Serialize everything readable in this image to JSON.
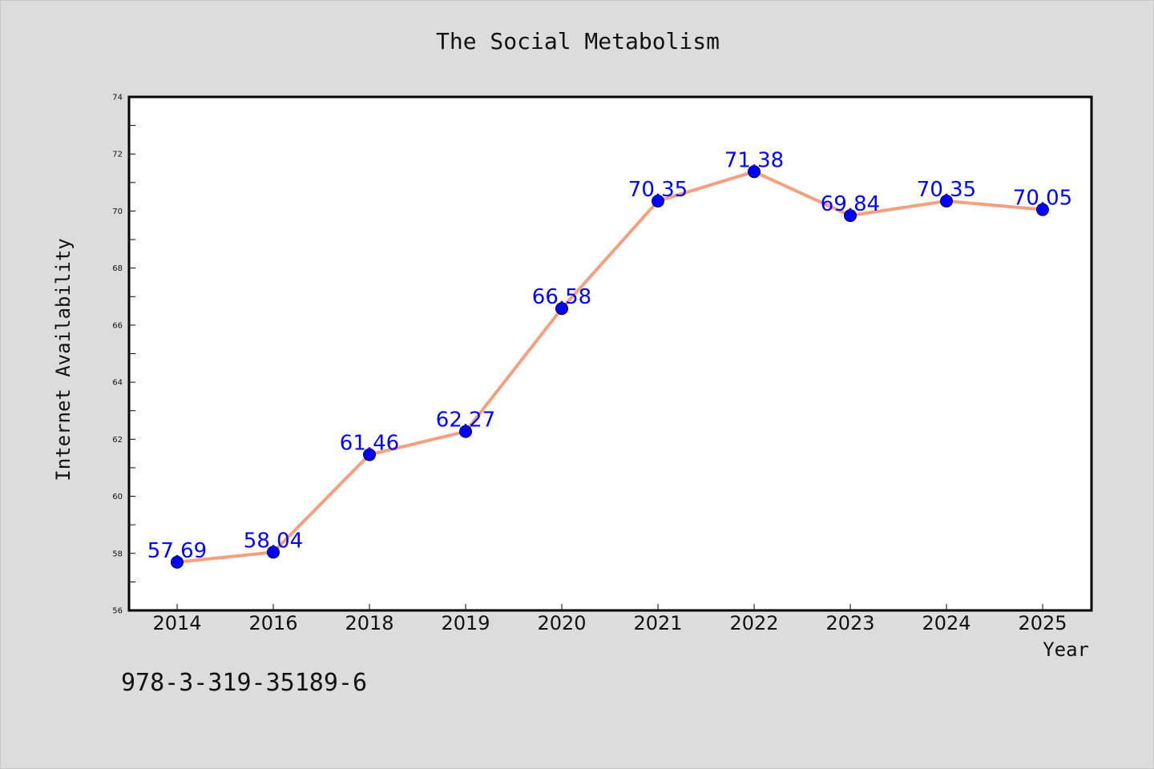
{
  "chart_data": {
    "type": "line",
    "title": "The Social Metabolism",
    "xlabel": "Year",
    "ylabel": "Internet Availability",
    "categories": [
      "2014",
      "2016",
      "2018",
      "2019",
      "2020",
      "2021",
      "2022",
      "2023",
      "2024",
      "2025"
    ],
    "series": [
      {
        "values": [
          57.69,
          58.04,
          61.46,
          62.27,
          66.58,
          70.35,
          71.38,
          69.84,
          70.35,
          70.05
        ],
        "labels": [
          "57.69",
          "58.04",
          "61.46",
          "62.27",
          "66.58",
          "70.35",
          "71.38",
          "69.84",
          "70.35",
          "70.05"
        ],
        "color": "#f4a07f",
        "marker_color": "#0000ff"
      }
    ],
    "ylim": [
      56,
      74
    ],
    "yticks": [
      "56",
      "58",
      "60",
      "62",
      "64",
      "66",
      "68",
      "70",
      "72",
      "74"
    ],
    "grid": false,
    "legend": "none"
  },
  "footnote": "978-3-319-35189-6",
  "colors": {
    "background": "#dcdcdc",
    "plot_area": "#ffffff",
    "line": "#f4a07f",
    "marker": "#0000ff",
    "data_label": "#0000ff"
  }
}
